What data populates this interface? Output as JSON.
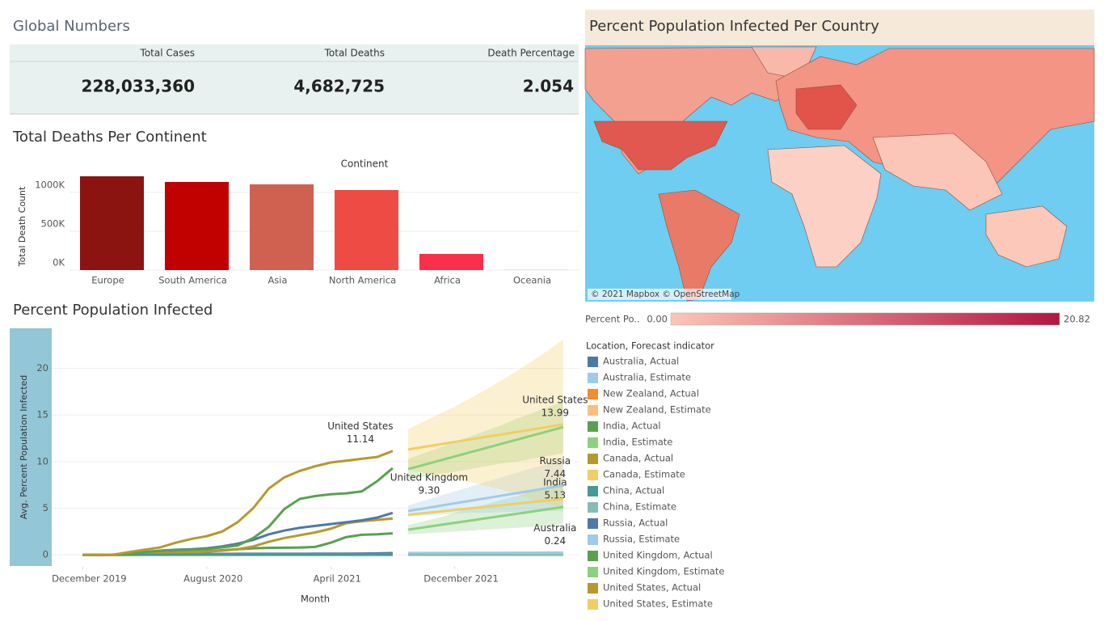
{
  "global_numbers": {
    "title": "Global Numbers",
    "headers": [
      "Total Cases",
      "Total Deaths",
      "Death Percentage"
    ],
    "values": [
      "228,033,360",
      "4,682,725",
      "2.054"
    ]
  },
  "map": {
    "title": "Percent Population Infected Per Country",
    "attribution": "© 2021 Mapbox © OpenStreetMap",
    "legend": {
      "label": "Percent Po..",
      "min": {
        "value": 0,
        "label": "0.00"
      },
      "max": 20.82,
      "colors": [
        "#fcc5b8",
        "#b4163f"
      ]
    }
  },
  "chart_data": [
    {
      "type": "bar",
      "title": "Total Deaths Per Continent",
      "x_label": "Continent",
      "y_label": "Total Death Count",
      "categories": [
        "Europe",
        "South America",
        "Asia",
        "North America",
        "Africa",
        "Oceania"
      ],
      "values": [
        1208000,
        1135000,
        1104000,
        1031000,
        208000,
        2000
      ],
      "colors": [
        "#8b1410",
        "#c10000",
        "#d06050",
        "#ee4b45",
        "#f8304a",
        "#ff6b7e"
      ],
      "ylim": [
        0,
        1250000
      ],
      "yticks": [
        {
          "value": 0,
          "label": "0K"
        },
        {
          "value": 500000,
          "label": "500K"
        },
        {
          "value": 1000000,
          "label": "1000K"
        }
      ],
      "grid": true
    },
    {
      "type": "line",
      "title": "Percent Population Infected",
      "x_label": "Month",
      "y_label": "Avg. Percent Population Infected",
      "legend_title": "Location, Forecast indicator",
      "xlim": [
        "2019-10",
        "2022-08"
      ],
      "xticks": [
        {
          "value": "2019-12",
          "label": "December 2019"
        },
        {
          "value": "2020-08",
          "label": "August 2020"
        },
        {
          "value": "2021-04",
          "label": "April 2021"
        },
        {
          "value": "2021-12",
          "label": "December 2021"
        }
      ],
      "ylim": [
        -1.2,
        24.3
      ],
      "yticks": [
        0,
        5,
        10,
        15,
        20
      ],
      "grid": true,
      "series": [
        {
          "name": "Australia, Actual",
          "color": "#4e79a7",
          "x": [
            "2019-12",
            "2020-01",
            "2020-02",
            "2020-03",
            "2020-04",
            "2020-05",
            "2020-06",
            "2020-07",
            "2020-08",
            "2020-09",
            "2020-10",
            "2020-11",
            "2020-12",
            "2021-01",
            "2021-02",
            "2021-03",
            "2021-04",
            "2021-05",
            "2021-06",
            "2021-07",
            "2021-08"
          ],
          "values": [
            0,
            0,
            0,
            0.02,
            0.03,
            0.03,
            0.04,
            0.08,
            0.1,
            0.1,
            0.11,
            0.11,
            0.11,
            0.11,
            0.11,
            0.12,
            0.12,
            0.12,
            0.13,
            0.15,
            0.19
          ]
        },
        {
          "name": "Australia, Estimate",
          "color": "#a0cbe8",
          "x": [
            "2021-09",
            "2021-10",
            "2021-11",
            "2021-12",
            "2022-01",
            "2022-02",
            "2022-03",
            "2022-04",
            "2022-05",
            "2022-06",
            "2022-07"
          ],
          "values": [
            0.2,
            0.2,
            0.21,
            0.21,
            0.22,
            0.22,
            0.22,
            0.23,
            0.23,
            0.24,
            0.24
          ],
          "annotation": {
            "text": "Australia",
            "value_label": "0.24"
          }
        },
        {
          "name": "New Zealand, Actual",
          "color": "#f28e2b",
          "x": [
            "2019-12",
            "2020-01",
            "2020-02",
            "2020-03",
            "2020-04",
            "2020-05",
            "2020-06",
            "2020-07",
            "2020-08",
            "2020-09",
            "2020-10",
            "2020-11",
            "2020-12",
            "2021-01",
            "2021-02",
            "2021-03",
            "2021-04",
            "2021-05",
            "2021-06",
            "2021-07",
            "2021-08"
          ],
          "values": [
            0,
            0,
            0,
            0.01,
            0.02,
            0.02,
            0.02,
            0.02,
            0.02,
            0.02,
            0.02,
            0.02,
            0.02,
            0.02,
            0.02,
            0.02,
            0.03,
            0.03,
            0.03,
            0.03,
            0.04
          ]
        },
        {
          "name": "New Zealand, Estimate",
          "color": "#ffbe7d",
          "x": [
            "2021-09",
            "2021-10",
            "2021-11",
            "2021-12",
            "2022-01",
            "2022-02",
            "2022-03",
            "2022-04",
            "2022-05",
            "2022-06",
            "2022-07"
          ],
          "values": [
            0.04,
            0.04,
            0.04,
            0.05,
            0.05,
            0.05,
            0.05,
            0.06,
            0.06,
            0.06,
            0.07
          ]
        },
        {
          "name": "India, Actual",
          "color": "#59a14f",
          "x": [
            "2019-12",
            "2020-01",
            "2020-02",
            "2020-03",
            "2020-04",
            "2020-05",
            "2020-06",
            "2020-07",
            "2020-08",
            "2020-09",
            "2020-10",
            "2020-11",
            "2020-12",
            "2021-01",
            "2021-02",
            "2021-03",
            "2021-04",
            "2021-05",
            "2021-06",
            "2021-07",
            "2021-08"
          ],
          "values": [
            0,
            0,
            0,
            0,
            0.01,
            0.03,
            0.1,
            0.2,
            0.35,
            0.5,
            0.6,
            0.7,
            0.75,
            0.76,
            0.78,
            0.85,
            1.3,
            1.9,
            2.15,
            2.2,
            2.3
          ]
        },
        {
          "name": "India, Estimate",
          "color": "#8cd17d",
          "x": [
            "2021-09",
            "2021-10",
            "2021-11",
            "2021-12",
            "2022-01",
            "2022-02",
            "2022-03",
            "2022-04",
            "2022-05",
            "2022-06",
            "2022-07"
          ],
          "values": [
            2.7,
            2.94,
            3.19,
            3.43,
            3.67,
            3.92,
            4.16,
            4.4,
            4.64,
            4.89,
            5.13
          ],
          "band_lower": [
            2.2,
            2.3,
            2.4,
            2.5,
            2.6,
            2.7,
            2.8,
            2.9,
            3.0,
            3.1,
            3.3
          ],
          "band_upper": [
            3.2,
            3.6,
            4.0,
            4.5,
            5.0,
            5.4,
            5.9,
            6.3,
            6.8,
            7.3,
            7.8
          ],
          "annotation": {
            "text": "India",
            "value_label": "5.13"
          }
        },
        {
          "name": "Canada, Actual",
          "color": "#b6992d",
          "x": [
            "2019-12",
            "2020-01",
            "2020-02",
            "2020-03",
            "2020-04",
            "2020-05",
            "2020-06",
            "2020-07",
            "2020-08",
            "2020-09",
            "2020-10",
            "2020-11",
            "2020-12",
            "2021-01",
            "2021-02",
            "2021-03",
            "2021-04",
            "2021-05",
            "2021-06",
            "2021-07",
            "2021-08"
          ],
          "values": [
            0,
            0,
            0.01,
            0.1,
            0.2,
            0.25,
            0.3,
            0.3,
            0.35,
            0.45,
            0.6,
            0.9,
            1.4,
            1.8,
            2.1,
            2.4,
            2.8,
            3.4,
            3.6,
            3.75,
            3.9
          ]
        },
        {
          "name": "Canada, Estimate",
          "color": "#f1ce63",
          "x": [
            "2021-09",
            "2021-10",
            "2021-11",
            "2021-12",
            "2022-01",
            "2022-02",
            "2022-03",
            "2022-04",
            "2022-05",
            "2022-06",
            "2022-07"
          ],
          "values": [
            4.3,
            4.47,
            4.64,
            4.81,
            4.98,
            5.15,
            5.32,
            5.49,
            5.66,
            5.83,
            6.0
          ]
        },
        {
          "name": "China, Actual",
          "color": "#499894",
          "x": [
            "2019-12",
            "2020-01",
            "2020-02",
            "2020-03",
            "2020-04",
            "2020-05",
            "2020-06",
            "2020-07",
            "2020-08",
            "2020-09",
            "2020-10",
            "2020-11",
            "2020-12",
            "2021-01",
            "2021-02",
            "2021-03",
            "2021-04",
            "2021-05",
            "2021-06",
            "2021-07",
            "2021-08"
          ],
          "values": [
            0,
            0.001,
            0.006,
            0.006,
            0.006,
            0.006,
            0.006,
            0.006,
            0.006,
            0.006,
            0.006,
            0.006,
            0.006,
            0.006,
            0.006,
            0.006,
            0.006,
            0.006,
            0.006,
            0.007,
            0.007
          ]
        },
        {
          "name": "China, Estimate",
          "color": "#86bcb6",
          "x": [
            "2021-09",
            "2021-10",
            "2021-11",
            "2021-12",
            "2022-01",
            "2022-02",
            "2022-03",
            "2022-04",
            "2022-05",
            "2022-06",
            "2022-07"
          ],
          "values": [
            0.007,
            0.007,
            0.007,
            0.007,
            0.007,
            0.007,
            0.007,
            0.007,
            0.007,
            0.007,
            0.007
          ]
        },
        {
          "name": "Russia, Actual",
          "color": "#4e79a7",
          "x": [
            "2019-12",
            "2020-01",
            "2020-02",
            "2020-03",
            "2020-04",
            "2020-05",
            "2020-06",
            "2020-07",
            "2020-08",
            "2020-09",
            "2020-10",
            "2020-11",
            "2020-12",
            "2021-01",
            "2021-02",
            "2021-03",
            "2021-04",
            "2021-05",
            "2021-06",
            "2021-07",
            "2021-08"
          ],
          "values": [
            0,
            0,
            0.01,
            0.1,
            0.3,
            0.45,
            0.55,
            0.6,
            0.7,
            0.9,
            1.2,
            1.6,
            2.2,
            2.6,
            2.9,
            3.1,
            3.3,
            3.5,
            3.7,
            4.0,
            4.5
          ]
        },
        {
          "name": "Russia, Estimate",
          "color": "#a0cbe8",
          "x": [
            "2021-09",
            "2021-10",
            "2021-11",
            "2021-12",
            "2022-01",
            "2022-02",
            "2022-03",
            "2022-04",
            "2022-05",
            "2022-06",
            "2022-07"
          ],
          "values": [
            4.7,
            4.97,
            5.25,
            5.52,
            5.8,
            6.07,
            6.34,
            6.62,
            6.89,
            7.17,
            7.44
          ],
          "band_lower": [
            4.1,
            4.2,
            4.3,
            4.4,
            4.5,
            4.5,
            4.6,
            4.6,
            4.7,
            4.7,
            4.7
          ],
          "band_upper": [
            5.3,
            5.8,
            6.3,
            6.8,
            7.3,
            7.8,
            8.3,
            8.8,
            9.3,
            9.7,
            10.2
          ],
          "annotation": {
            "text": "Russia",
            "value_label": "7.44"
          }
        },
        {
          "name": "United Kingdom, Actual",
          "color": "#59a14f",
          "x": [
            "2019-12",
            "2020-01",
            "2020-02",
            "2020-03",
            "2020-04",
            "2020-05",
            "2020-06",
            "2020-07",
            "2020-08",
            "2020-09",
            "2020-10",
            "2020-11",
            "2020-12",
            "2021-01",
            "2021-02",
            "2021-03",
            "2021-04",
            "2021-05",
            "2021-06",
            "2021-07",
            "2021-08"
          ],
          "values": [
            0,
            0,
            0.01,
            0.05,
            0.3,
            0.45,
            0.5,
            0.55,
            0.6,
            0.8,
            1.0,
            1.8,
            3.0,
            4.9,
            6.0,
            6.3,
            6.5,
            6.6,
            6.8,
            7.9,
            9.3
          ],
          "annotation": {
            "text": "United Kingdom",
            "value_label": "9.30"
          }
        },
        {
          "name": "United Kingdom, Estimate",
          "color": "#8cd17d",
          "x": [
            "2021-09",
            "2021-10",
            "2021-11",
            "2021-12",
            "2022-01",
            "2022-02",
            "2022-03",
            "2022-04",
            "2022-05",
            "2022-06",
            "2022-07"
          ],
          "values": [
            9.2,
            9.65,
            10.1,
            10.55,
            11.0,
            11.45,
            11.9,
            12.35,
            12.8,
            13.25,
            13.7
          ],
          "band_lower": [
            8.1,
            8.4,
            8.7,
            8.9,
            9.2,
            9.5,
            9.8,
            10.0,
            10.3,
            10.6,
            10.9
          ],
          "band_upper": [
            10.3,
            10.9,
            11.5,
            12.1,
            12.7,
            13.3,
            13.9,
            14.6,
            15.2,
            15.8,
            16.5
          ]
        },
        {
          "name": "United States, Actual",
          "color": "#b6992d",
          "x": [
            "2019-12",
            "2020-01",
            "2020-02",
            "2020-03",
            "2020-04",
            "2020-05",
            "2020-06",
            "2020-07",
            "2020-08",
            "2020-09",
            "2020-10",
            "2020-11",
            "2020-12",
            "2021-01",
            "2021-02",
            "2021-03",
            "2021-04",
            "2021-05",
            "2021-06",
            "2021-07",
            "2021-08"
          ],
          "values": [
            0,
            0,
            0.02,
            0.3,
            0.55,
            0.8,
            1.3,
            1.7,
            2.0,
            2.5,
            3.5,
            5.0,
            7.1,
            8.3,
            9.0,
            9.5,
            9.9,
            10.1,
            10.3,
            10.5,
            11.14
          ],
          "annotation": {
            "text": "United States",
            "value_label": "11.14"
          }
        },
        {
          "name": "United States, Estimate",
          "color": "#f1ce63",
          "x": [
            "2021-09",
            "2021-10",
            "2021-11",
            "2021-12",
            "2022-01",
            "2022-02",
            "2022-03",
            "2022-04",
            "2022-05",
            "2022-06",
            "2022-07"
          ],
          "values": [
            11.3,
            11.57,
            11.84,
            12.11,
            12.38,
            12.65,
            12.91,
            13.18,
            13.45,
            13.72,
            13.99
          ],
          "band_lower": [
            9.1,
            8.8,
            8.5,
            8.2,
            7.8,
            7.4,
            7.0,
            6.5,
            6.0,
            5.5,
            4.9
          ],
          "band_upper": [
            13.5,
            14.3,
            15.1,
            15.9,
            16.8,
            17.7,
            18.7,
            19.7,
            20.8,
            21.9,
            23.1
          ],
          "annotation": {
            "text": "United States",
            "value_label": "13.99"
          }
        }
      ]
    }
  ]
}
